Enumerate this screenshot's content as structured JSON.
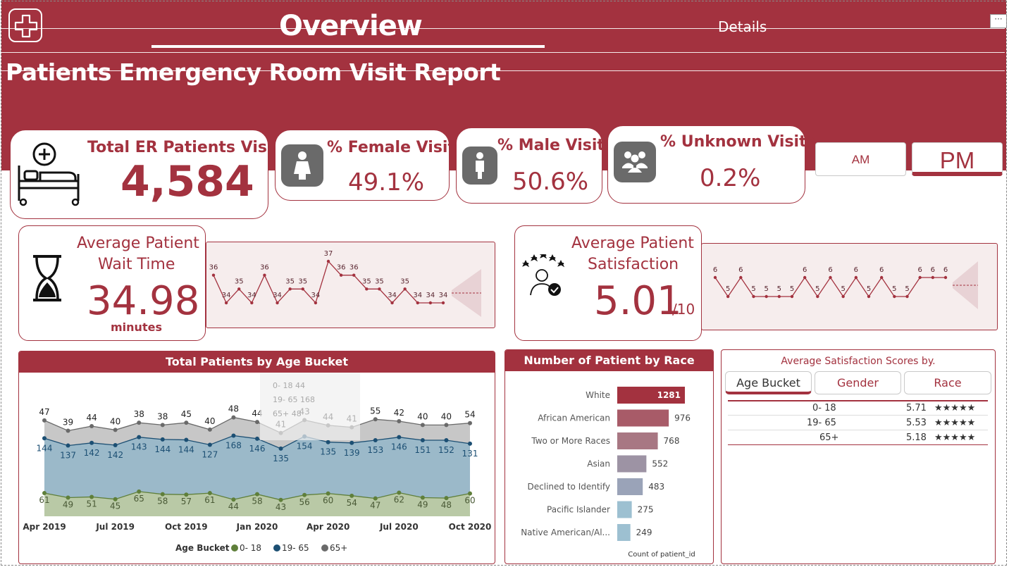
{
  "nav": {
    "overview_label": "Overview",
    "details_label": "Details",
    "more_label": "···"
  },
  "report_title": "Patients Emergency Room Visit Report",
  "kpis": {
    "total": {
      "title": "Total ER Patients Visits",
      "value": "4,584"
    },
    "female": {
      "title": "% Female Visits",
      "value": "49.1%"
    },
    "male": {
      "title": "% Male Visits",
      "value": "50.6%"
    },
    "unknown": {
      "title": "% Unknown Visits",
      "value": "0.2%"
    }
  },
  "time_filter": {
    "am_label": "AM",
    "pm_label": "PM",
    "selected": "PM"
  },
  "wait_time": {
    "title_line1": "Average Patient",
    "title_line2": "Wait Time",
    "value": "34.98",
    "unit": "minutes"
  },
  "satisfaction": {
    "title_line1": "Average Patient",
    "title_line2": "Satisfaction",
    "value": "5.01",
    "scale": "/10"
  },
  "colors": {
    "brand": "#a3323f",
    "age_0_18": "#5f7f3a",
    "age_19_65": "#1c4f73",
    "age_65_plus": "#6a6a6a"
  },
  "chart_data": [
    {
      "type": "line",
      "name": "wait_time_sparkline",
      "values": [
        36,
        34,
        35,
        34,
        36,
        34,
        35,
        35,
        34,
        37,
        36,
        36,
        35,
        35,
        34,
        35,
        34,
        34,
        34
      ],
      "labels": [
        "36",
        "34",
        "35",
        "34",
        "36",
        "34",
        "35",
        "35",
        "34",
        "37",
        "36",
        "36",
        "35",
        "35",
        "34",
        "35",
        "34",
        "34",
        "34"
      ],
      "forecast": true
    },
    {
      "type": "line",
      "name": "satisfaction_sparkline",
      "values": [
        6,
        5,
        6,
        5,
        5,
        5,
        5,
        6,
        5,
        6,
        5,
        6,
        5,
        6,
        5,
        5,
        6,
        6,
        6
      ],
      "labels": [
        "6",
        "5",
        "6",
        "5",
        "5",
        "5",
        "5",
        "6",
        "5",
        "6",
        "5",
        "6",
        "5",
        "6",
        "5",
        "5",
        "6",
        "6",
        "6"
      ],
      "forecast": true
    },
    {
      "type": "area",
      "title": "Total Patients by Age Bucket",
      "x_ticks": [
        "Apr 2019",
        "Jul 2019",
        "Oct 2019",
        "Jan 2020",
        "Apr 2020",
        "Jul 2020",
        "Oct 2020"
      ],
      "x": [
        "Apr 2019",
        "May 2019",
        "Jun 2019",
        "Jul 2019",
        "Aug 2019",
        "Sep 2019",
        "Oct 2019",
        "Nov 2019",
        "Dec 2019",
        "Jan 2020",
        "Feb 2020",
        "Mar 2020",
        "Apr 2020",
        "May 2020",
        "Jun 2020",
        "Jul 2020",
        "Aug 2020",
        "Sep 2020",
        "Oct 2020"
      ],
      "legend_title": "Age Bucket",
      "series": [
        {
          "name": "0- 18",
          "color": "#5f7f3a",
          "values": [
            61,
            49,
            51,
            45,
            65,
            58,
            57,
            61,
            44,
            58,
            43,
            56,
            60,
            54,
            47,
            62,
            49,
            48,
            60
          ]
        },
        {
          "name": "19- 65",
          "color": "#1c4f73",
          "values": [
            144,
            137,
            142,
            142,
            143,
            144,
            144,
            127,
            168,
            146,
            135,
            154,
            135,
            139,
            153,
            146,
            151,
            152,
            131
          ]
        },
        {
          "name": "65+",
          "color": "#6a6a6a",
          "values": [
            47,
            39,
            44,
            40,
            38,
            38,
            45,
            40,
            48,
            44,
            41,
            43,
            44,
            41,
            55,
            42,
            40,
            40,
            54
          ]
        }
      ],
      "stacked": true
    },
    {
      "type": "bar",
      "title": "Number of Patient by Race",
      "categories": [
        "White",
        "African American",
        "Two or More Races",
        "Asian",
        "Declined to Identify",
        "Pacific Islander",
        "Native American/Al..."
      ],
      "values": [
        1281,
        976,
        768,
        552,
        483,
        275,
        249
      ],
      "colors": [
        "#a3323f",
        "#a85b68",
        "#a87783",
        "#9d93a4",
        "#9aa3b8",
        "#9dc0d1",
        "#9dc0d1"
      ],
      "xlabel": "Count of patient_id"
    }
  ],
  "satisfaction_table": {
    "title": "Average Satisfaction Scores by.",
    "tabs": [
      "Age Bucket",
      "Gender",
      "Race"
    ],
    "active_tab": "Age Bucket",
    "rows": [
      {
        "label": "0- 18",
        "score": "5.71",
        "stars": "★★★★★"
      },
      {
        "label": "19- 65",
        "score": "5.53",
        "stars": "★★★★★"
      },
      {
        "label": "65+",
        "score": "5.18",
        "stars": "★★★★★"
      }
    ]
  },
  "tooltip_ghost": {
    "rows": [
      "0- 18   44",
      "19- 65  168",
      "65+     48"
    ]
  }
}
